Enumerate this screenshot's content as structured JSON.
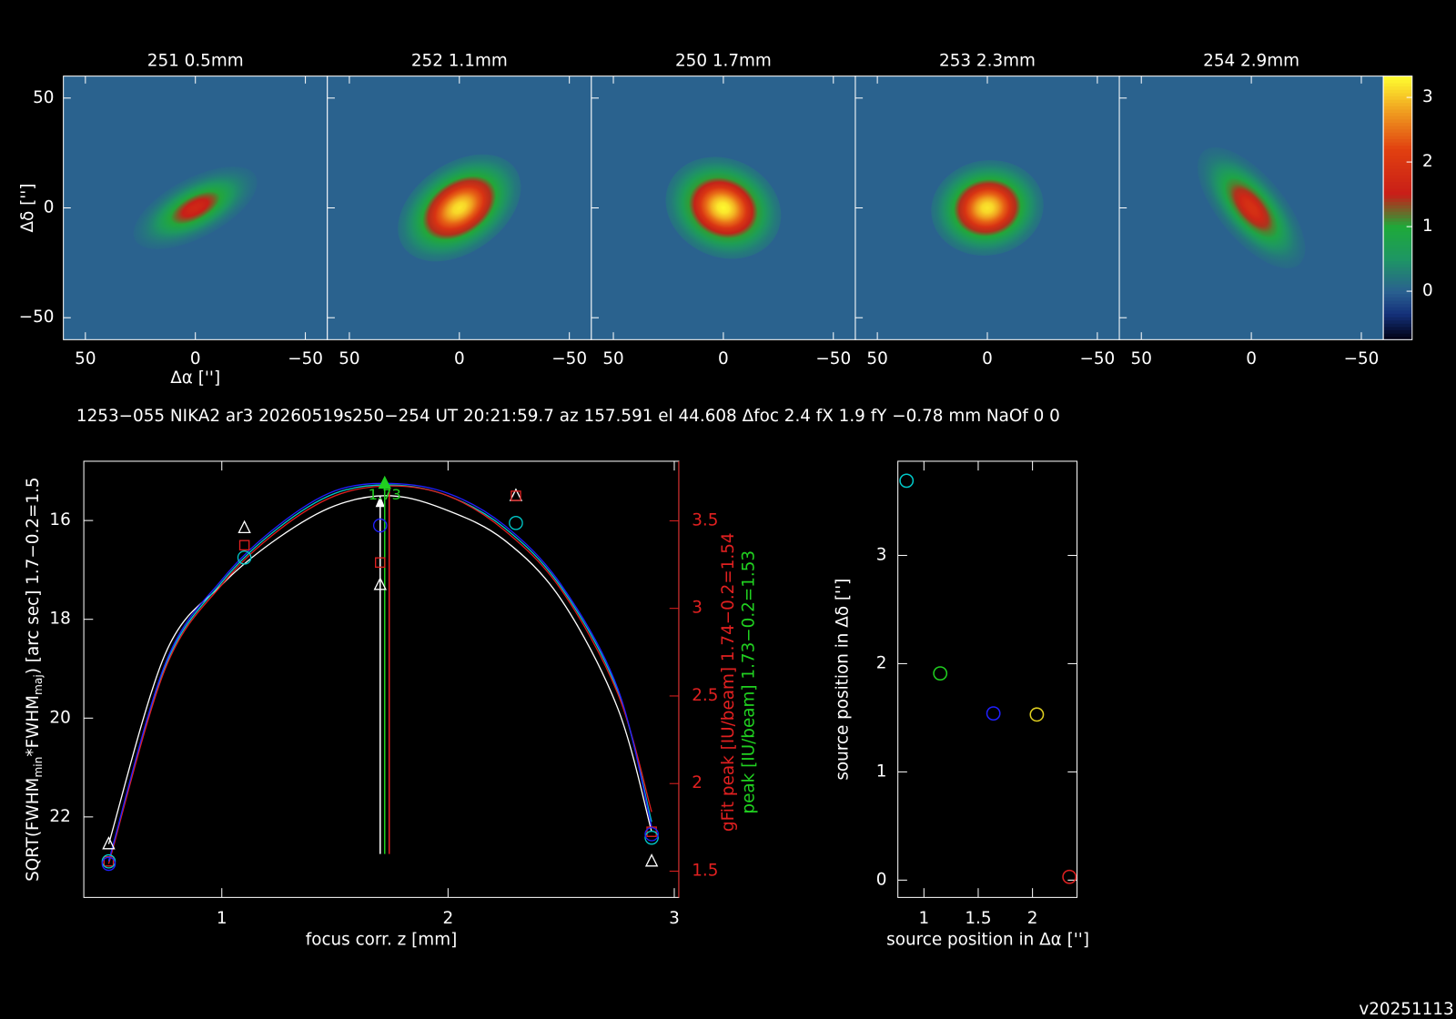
{
  "chart_data": [
    {
      "type": "image-grid",
      "panels": [
        {
          "title": "251 0.5mm",
          "peak": 1.7
        },
        {
          "title": "252 1.1mm",
          "peak": 3.2
        },
        {
          "title": "250 1.7mm",
          "peak": 3.3
        },
        {
          "title": "253 2.3mm",
          "peak": 3.2
        },
        {
          "title": "254 2.9mm",
          "peak": 1.9
        }
      ],
      "xlim": [
        60,
        -60
      ],
      "ylim": [
        -60,
        60
      ],
      "xticks": [
        50,
        0,
        {
          "value": -50,
          "label": "−50"
        }
      ],
      "yticks": [
        {
          "value": -50,
          "label": "−50"
        },
        0,
        50
      ],
      "xlabel": "Δα ['']",
      "ylabel": "Δδ ['']",
      "clim": [
        -0.75,
        3.33
      ],
      "cticks": [
        0,
        1,
        2,
        3
      ]
    },
    {
      "type": "line",
      "title": "1253−055 NIKA2 ar3 20260519s250−254 UT 20:21:59.7 az 157.591 el 44.608 Δfoc 2.4 fX 1.9 fY −0.78 mm NaOf 0 0",
      "xlim": [
        0.39,
        3.02
      ],
      "ylim": [
        23.63,
        14.8
      ],
      "xticks": [
        1,
        2,
        3
      ],
      "yticks": [
        16,
        18,
        20,
        22
      ],
      "y2lim": [
        1.35,
        3.84
      ],
      "y2ticks": [
        1.5,
        2,
        2.5,
        3,
        3.5
      ],
      "y2color": "#e02020",
      "xlabel": "focus corr. z [mm]",
      "ylabel": [
        "SQRT(FWHM",
        "min",
        "*FWHM",
        "maj",
        ") [arc sec] 1.7−0.2=1.5"
      ],
      "y2labels": [
        {
          "text": "gFit peak [IU/beam] 1.74−0.2=1.54",
          "color": "#e02020"
        },
        {
          "text": "peak [IU/beam] 1.73−0.2=1.53",
          "color": "#20d020"
        }
      ],
      "series": [
        {
          "marker": "triangle",
          "color": "#ffffff",
          "x": [
            0.5,
            1.1,
            1.7,
            2.3,
            2.9
          ],
          "values": [
            22.55,
            16.15,
            17.3,
            15.5,
            22.9
          ]
        },
        {
          "marker": "square",
          "color": "#e02020",
          "x": [
            0.5,
            1.1,
            1.7,
            2.3,
            2.9
          ],
          "values": [
            22.9,
            16.5,
            16.85,
            15.5,
            22.3
          ]
        },
        {
          "marker": "circle",
          "color": "#00c8c8",
          "x": [
            0.5,
            1.1,
            1.7,
            2.3,
            2.9
          ],
          "values": [
            22.9,
            16.75,
            null,
            16.05,
            22.42
          ]
        },
        {
          "marker": "circle",
          "color": "#2020ff",
          "x": [
            0.5,
            1.1,
            1.7,
            2.3,
            2.9
          ],
          "values": [
            22.95,
            null,
            16.1,
            null,
            22.35
          ]
        },
        {
          "marker": "triangle-filled",
          "color": "#20d020",
          "x": [
            1.72
          ],
          "values": [
            15.25
          ]
        }
      ],
      "curves": [
        {
          "color": "#ffffff",
          "x": [
            0.5,
            0.75,
            1.0,
            1.25,
            1.5,
            1.75,
            2.0,
            2.25,
            2.5,
            2.75,
            2.9
          ],
          "values": [
            22.55,
            18.7,
            17.3,
            16.35,
            15.7,
            15.5,
            15.8,
            16.4,
            17.6,
            19.8,
            22.3
          ]
        },
        {
          "color": "#00c8c8",
          "x": [
            0.5,
            0.75,
            1.0,
            1.25,
            1.5,
            1.75,
            2.0,
            2.25,
            2.5,
            2.75,
            2.9
          ],
          "values": [
            22.9,
            18.95,
            17.25,
            16.15,
            15.45,
            15.28,
            15.5,
            16.15,
            17.35,
            19.45,
            22.1
          ]
        },
        {
          "color": "#e02020",
          "x": [
            0.5,
            0.75,
            1.0,
            1.25,
            1.5,
            1.75,
            2.0,
            2.25,
            2.5,
            2.75,
            2.9
          ],
          "values": [
            22.95,
            19.0,
            17.3,
            16.2,
            15.5,
            15.3,
            15.5,
            16.2,
            17.4,
            19.5,
            21.9
          ]
        },
        {
          "color": "#2020ff",
          "x": [
            0.5,
            0.75,
            1.0,
            1.25,
            1.5,
            1.75,
            2.0,
            2.25,
            2.5,
            2.75,
            2.9
          ],
          "values": [
            22.9,
            18.9,
            17.2,
            16.1,
            15.4,
            15.25,
            15.45,
            16.1,
            17.3,
            19.4,
            22.2
          ]
        }
      ],
      "vlines": [
        {
          "x": 1.7,
          "color": "#ffffff",
          "y": [
            15.5,
            22.75
          ]
        },
        {
          "x": 1.72,
          "color": "#20d020",
          "y": [
            15.3,
            22.75
          ]
        },
        {
          "x": 1.74,
          "color": "#e02020",
          "y": [
            15.35,
            22.75
          ]
        }
      ],
      "annotation": "1.73"
    },
    {
      "type": "scatter",
      "xlim": [
        0.76,
        2.41
      ],
      "ylim": [
        -0.16,
        3.87
      ],
      "xticks": [
        1,
        1.5,
        2
      ],
      "yticks": [
        0,
        1,
        2,
        3
      ],
      "xlabel": "source position in Δα ['']",
      "ylabel": "source position in Δδ ['']",
      "x": [
        0.84,
        1.15,
        1.64,
        2.04,
        2.34
      ],
      "values": [
        3.69,
        1.91,
        1.54,
        1.53,
        0.03
      ],
      "colors": [
        "#00c8c8",
        "#20d020",
        "#2020ff",
        "#e0d020",
        "#e02020"
      ]
    }
  ],
  "version": "v20251113"
}
